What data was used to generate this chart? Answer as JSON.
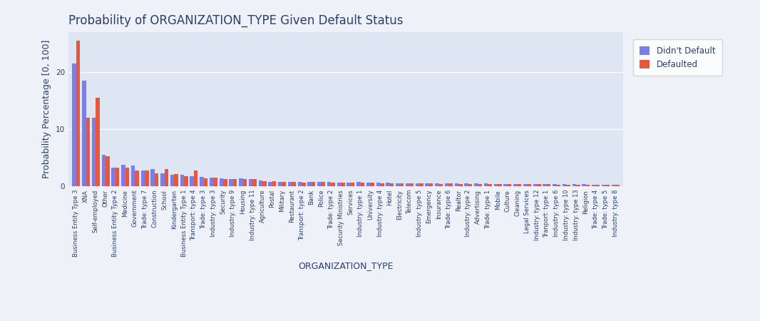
{
  "title": "Probability of ORGANIZATION_TYPE Given Default Status",
  "xlabel": "ORGANIZATION_TYPE",
  "ylabel": "Probability Percentage [0, 100]",
  "legend_labels": [
    "Didn't Default",
    "Defaulted"
  ],
  "colors": [
    "#7b7de8",
    "#e8573a"
  ],
  "background_color": "#dde6f2",
  "fig_background": "#eef2f8",
  "categories": [
    "Business Entity Type 3",
    "XNA",
    "Self-employed",
    "Other",
    "Business Entity Type 2",
    "Medicine",
    "Government",
    "Trade: type 7",
    "Construction",
    "School",
    "Kindergarten",
    "Business Entity Type 1",
    "Transport: type 4",
    "Trade: type 3",
    "Industry: type 3",
    "Security",
    "Industry: type 9",
    "Housing",
    "Industry: type 11",
    "Agriculture",
    "Postal",
    "Military",
    "Restaurant",
    "Transport: type 2",
    "Bank",
    "Police",
    "Trade: type 2",
    "Security Ministries",
    "Services",
    "Industry: type 1",
    "University",
    "Industry: type 4",
    "Hotel",
    "Electricity",
    "Telecom",
    "Industry: type 5",
    "Emergency",
    "Insurance",
    "Trade: type 6",
    "Realtor",
    "Industry: type 2",
    "Advertising",
    "Trade: type 1",
    "Mobile",
    "Culture",
    "Cleaning",
    "Legal Services",
    "Industry: type 12",
    "Tranport: type 1",
    "Industry: type 6",
    "Industry: type 10",
    "Industry: type 13",
    "Religion",
    "Trade: type 4",
    "Trade: type 5",
    "Industry: type 8"
  ],
  "no_default": [
    21.5,
    18.5,
    12.0,
    5.5,
    3.3,
    3.7,
    3.6,
    2.8,
    3.0,
    2.2,
    2.0,
    2.0,
    1.8,
    1.6,
    1.5,
    1.4,
    1.3,
    1.4,
    1.3,
    1.0,
    0.8,
    0.7,
    0.75,
    0.8,
    0.7,
    0.8,
    0.7,
    0.6,
    0.65,
    0.7,
    0.65,
    0.6,
    0.6,
    0.55,
    0.5,
    0.5,
    0.5,
    0.5,
    0.5,
    0.5,
    0.45,
    0.45,
    0.45,
    0.4,
    0.4,
    0.4,
    0.4,
    0.4,
    0.4,
    0.35,
    0.35,
    0.35,
    0.35,
    0.3,
    0.3,
    0.3
  ],
  "defaulted": [
    25.5,
    12.0,
    15.5,
    5.2,
    3.2,
    3.2,
    2.8,
    2.8,
    2.2,
    3.0,
    2.1,
    1.7,
    2.8,
    1.4,
    1.5,
    1.3,
    1.2,
    1.2,
    1.2,
    0.9,
    0.9,
    0.8,
    0.7,
    0.6,
    0.7,
    0.7,
    0.6,
    0.6,
    0.6,
    0.6,
    0.6,
    0.5,
    0.5,
    0.5,
    0.5,
    0.45,
    0.45,
    0.4,
    0.45,
    0.4,
    0.4,
    0.4,
    0.4,
    0.4,
    0.35,
    0.35,
    0.35,
    0.35,
    0.35,
    0.3,
    0.3,
    0.3,
    0.3,
    0.3,
    0.25,
    0.25
  ],
  "ylim": [
    0,
    27
  ],
  "yticks": [
    0,
    10,
    20
  ],
  "bar_width": 0.4,
  "title_fontsize": 12,
  "axis_label_fontsize": 9,
  "tick_fontsize": 6,
  "legend_fontsize": 8.5
}
